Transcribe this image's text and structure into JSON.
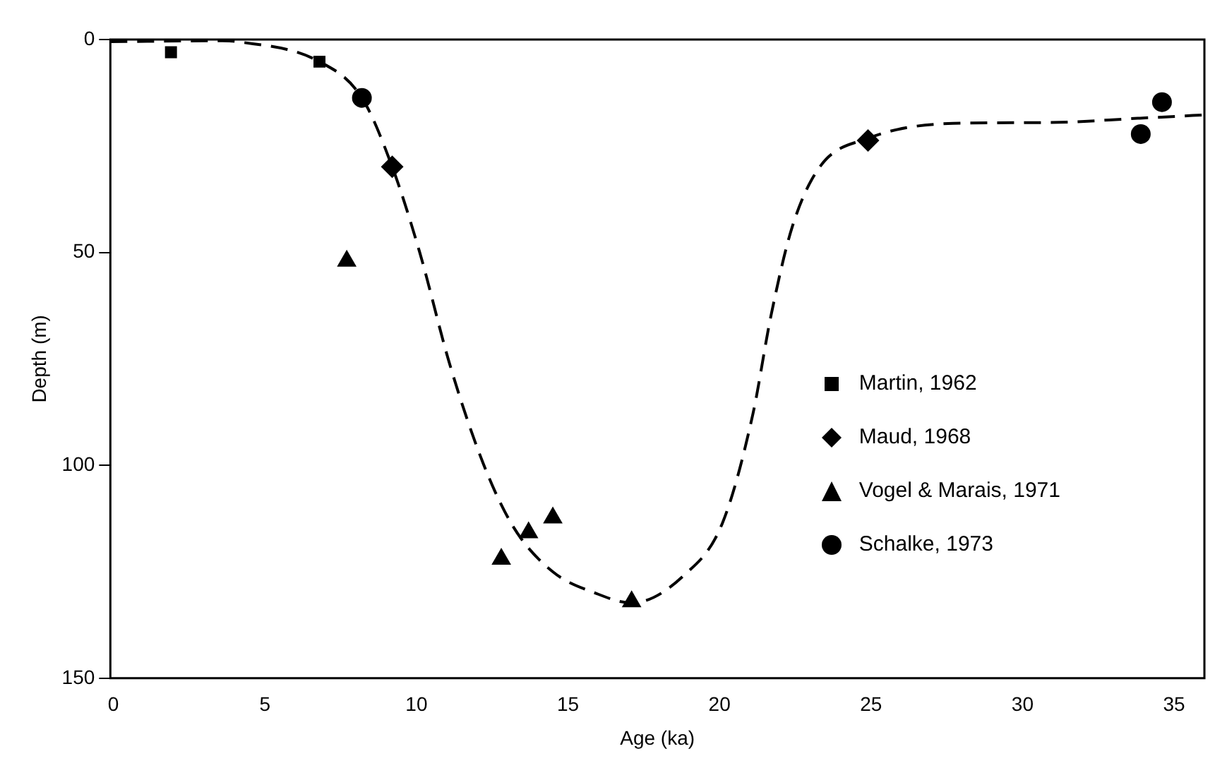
{
  "chart_data": {
    "type": "scatter",
    "xlabel": "Age (ka)",
    "ylabel": "Depth (m)",
    "xlim": [
      -0.1,
      36
    ],
    "xticks": [
      0,
      5,
      10,
      15,
      20,
      25,
      30,
      35
    ],
    "ylim": [
      150,
      0
    ],
    "yticks": [
      0,
      50,
      100,
      150
    ],
    "grid": false,
    "legend": "right",
    "series": [
      {
        "name": "Martin, 1962",
        "color": "#000000",
        "marker": "square",
        "x": [
          1.9,
          6.8
        ],
        "values": [
          3,
          5.2
        ]
      },
      {
        "name": "Maud, 1968",
        "color": "#000000",
        "marker": "diamond",
        "x": [
          9.2,
          24.9
        ],
        "values": [
          29.9,
          23.7
        ]
      },
      {
        "name": "Vogel & Marais, 1971",
        "color": "#000000",
        "marker": "triangle",
        "x": [
          7.7,
          12.8,
          13.7,
          14.5,
          17.1
        ],
        "values": [
          52,
          122,
          115.8,
          112.3,
          132
        ]
      },
      {
        "name": "Schalke, 1973",
        "color": "#000000",
        "marker": "circle",
        "x": [
          8.2,
          33.9,
          34.6
        ],
        "values": [
          13.7,
          22.2,
          14.7
        ]
      },
      {
        "type": "line",
        "color": "#000000",
        "marker": "none",
        "line_style": "dashed",
        "x": [
          -0.1,
          3.6,
          4.1,
          6.8,
          8.2,
          9.2,
          10.1,
          11.1,
          12.2,
          13.2,
          14.5,
          15.9,
          17.1,
          18.8,
          20.1,
          21.1,
          21.7,
          22.4,
          23.3,
          24.9,
          27.7,
          30.9,
          33.8,
          36
        ],
        "values": [
          0.5,
          0.3,
          0.5,
          5.2,
          13.7,
          29.9,
          49.8,
          76.3,
          99.5,
          114.5,
          125,
          130,
          132.3,
          126,
          113.5,
          88,
          64.8,
          44,
          30,
          23.2,
          19.7,
          19.5,
          18.5,
          17.7
        ]
      }
    ]
  }
}
